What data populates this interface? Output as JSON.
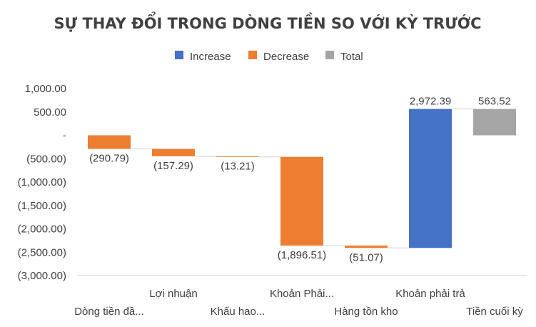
{
  "chart_data": {
    "type": "waterfall",
    "title": "SỰ THAY ĐỔI TRONG DÒNG TIỀN SO VỚI KỲ TRƯỚC",
    "legend": {
      "position": "top",
      "entries": [
        {
          "name": "Increase",
          "color": "#4472C4"
        },
        {
          "name": "Decrease",
          "color": "#ED7D31"
        },
        {
          "name": "Total",
          "color": "#A5A5A5"
        }
      ]
    },
    "categories": [
      "Dòng tiền đầ...",
      "Lợi nhuận",
      "Khấu hao...",
      "Khoản Phải...",
      "Hàng tồn kho",
      "Khoản phải trả",
      "Tiền cuối kỳ"
    ],
    "values": [
      -290.79,
      -157.29,
      -13.21,
      -1896.51,
      -51.07,
      2972.39,
      563.52
    ],
    "kinds": [
      "decrease",
      "decrease",
      "decrease",
      "decrease",
      "decrease",
      "increase",
      "total"
    ],
    "data_labels": [
      "(290.79)",
      "(157.29)",
      "(13.21)",
      "(1,896.51)",
      "(51.07)",
      "2,972.39",
      "563.52"
    ],
    "ylim": [
      -3000,
      1000
    ],
    "yticks": [
      1000,
      500,
      0,
      -500,
      -1000,
      -1500,
      -2000,
      -2500,
      -3000
    ],
    "ytick_labels": [
      "1,000.00",
      "500.00",
      "-",
      "(500.00)",
      "(1,000.00)",
      "(1,500.00)",
      "(2,000.00)",
      "(2,500.00)",
      "(3,000.00)"
    ],
    "grid": false,
    "colors": {
      "increase": "#4472C4",
      "decrease": "#ED7D31",
      "total": "#A5A5A5",
      "connector": "#D9D9D9",
      "axis": "#D9D9D9",
      "text": "#404040"
    }
  }
}
